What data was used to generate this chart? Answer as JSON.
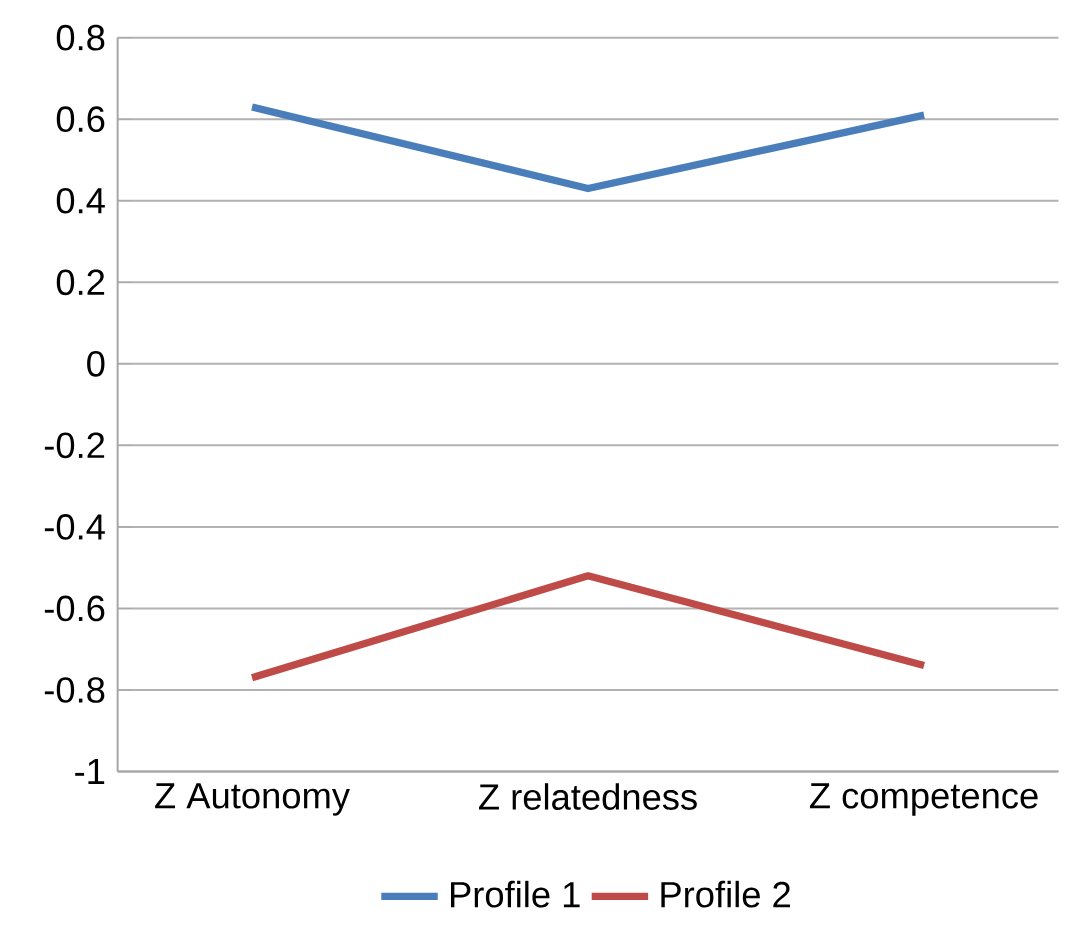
{
  "chart_data": {
    "type": "line",
    "categories": [
      "Z Autonomy",
      "Z relatedness",
      "Z competence"
    ],
    "series": [
      {
        "name": "Profile 1",
        "color": "#4a7ebb",
        "values": [
          0.63,
          0.43,
          0.61
        ]
      },
      {
        "name": "Profile 2",
        "color": "#be4b48",
        "values": [
          -0.77,
          -0.52,
          -0.74
        ]
      }
    ],
    "ylim": [
      -1,
      0.8
    ],
    "yticks": [
      -1,
      {
        "value": -0.8,
        "label": "-0.8"
      },
      {
        "value": -0.6,
        "label": "-0.6"
      },
      {
        "value": -0.4,
        "label": "-0.4"
      },
      {
        "value": -0.2,
        "label": "-0.2"
      },
      0,
      0.2,
      0.4,
      0.6,
      0.8
    ],
    "grid": "y",
    "legend": "bottom",
    "marker": "none",
    "line_style": "solid"
  }
}
